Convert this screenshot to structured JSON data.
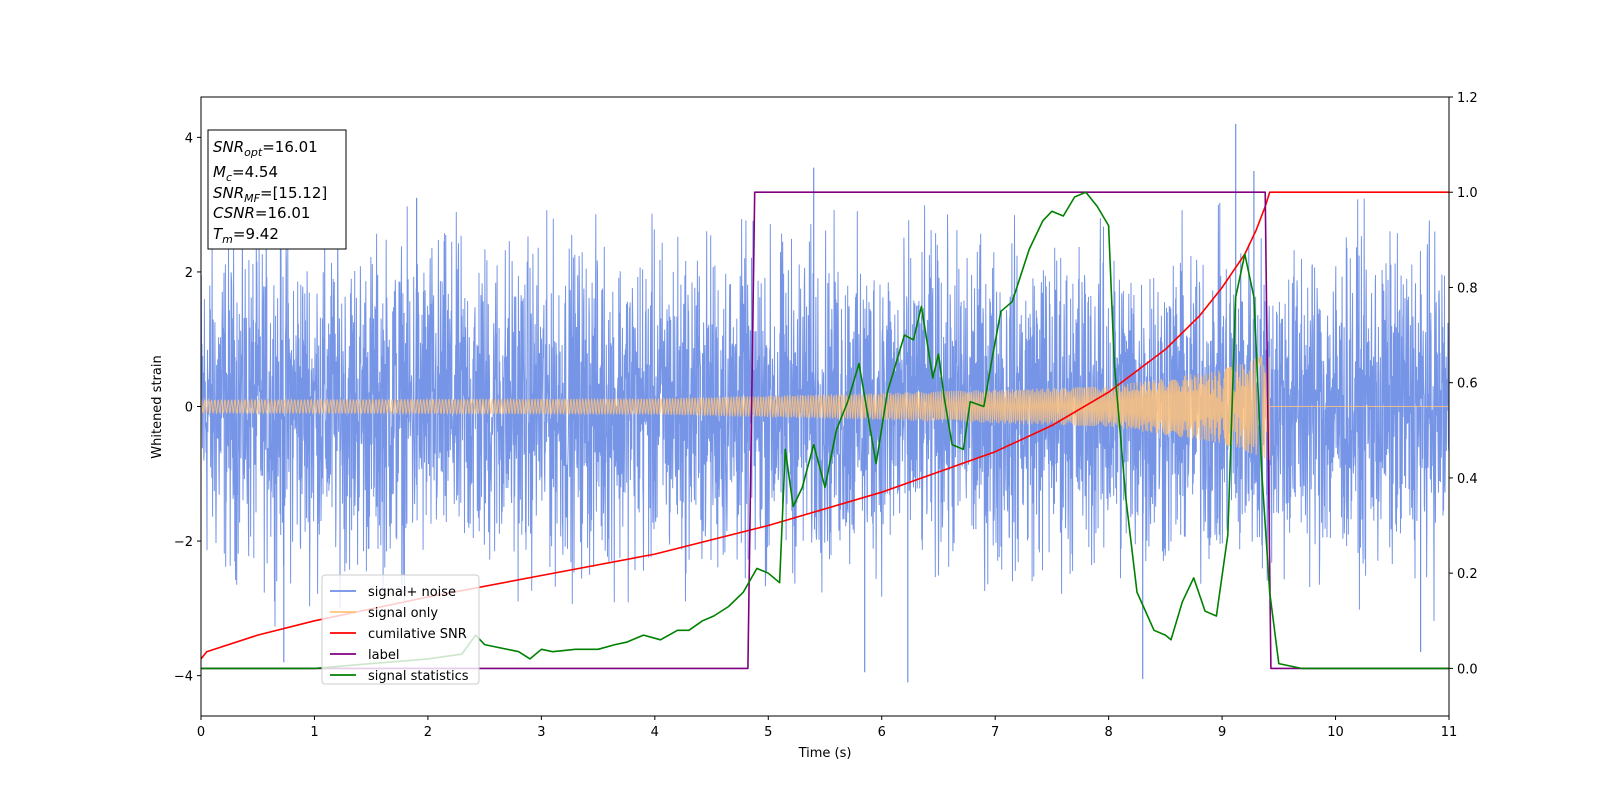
{
  "chart_data": {
    "type": "line",
    "title": "",
    "xlabel": "Time (s)",
    "ylabel": "Whitened strain",
    "y2label": "",
    "xlim": [
      0,
      11
    ],
    "ylim": [
      -4.6,
      4.6
    ],
    "y2lim": [
      -0.1,
      1.2
    ],
    "xticks": [
      "0",
      "1",
      "2",
      "3",
      "4",
      "5",
      "6",
      "7",
      "8",
      "9",
      "10",
      "11"
    ],
    "yticks": [
      "4",
      "2",
      "0",
      "−2",
      "−4"
    ],
    "y2ticks": [
      "1.2",
      "1.0",
      "0.8",
      "0.6",
      "0.4",
      "0.2",
      "0.0"
    ],
    "grid": false,
    "legend_position": "lower-left",
    "legend": [
      {
        "label": "signal+ noise",
        "color": "#6f8fe6"
      },
      {
        "label": "signal only",
        "color": "#ffc27a"
      },
      {
        "label": "cumilative SNR",
        "color": "#ff0000"
      },
      {
        "label": "label",
        "color": "#800080"
      },
      {
        "label": "signal statistics",
        "color": "#008000"
      }
    ],
    "annotation": {
      "lines": [
        {
          "main": "SNR",
          "sub": "opt",
          "value": "=16.01"
        },
        {
          "main": "M",
          "sub": "c",
          "value": "=4.54"
        },
        {
          "main": "SNR",
          "sub": "MF",
          "value": "=[15.12]"
        },
        {
          "main": "CSNR",
          "sub": "",
          "value": "=16.01"
        },
        {
          "main": "T",
          "sub": "m",
          "value": "=9.42"
        }
      ]
    },
    "series": [
      {
        "name": "signal+ noise",
        "axis": "left",
        "style": "noise-band",
        "color": "#6f8fe6",
        "x_range": [
          0,
          11
        ],
        "envelope": [
          2.3,
          2.4
        ],
        "peak_points": [
          {
            "x": 0.73,
            "y": -3.8
          },
          {
            "x": 1.9,
            "y": 3.1
          },
          {
            "x": 5.4,
            "y": 3.55
          },
          {
            "x": 5.85,
            "y": -3.95
          },
          {
            "x": 6.23,
            "y": -4.1
          },
          {
            "x": 8.3,
            "y": -4.05
          },
          {
            "x": 9.12,
            "y": 4.2
          },
          {
            "x": 9.28,
            "y": 3.5
          },
          {
            "x": 10.75,
            "y": -3.65
          }
        ]
      },
      {
        "name": "signal only",
        "axis": "left",
        "style": "chirp",
        "color": "#ffc27a",
        "x_range": [
          0,
          9.42
        ],
        "amplitude_points": [
          {
            "x": 0,
            "y": 0.1
          },
          {
            "x": 4,
            "y": 0.12
          },
          {
            "x": 6,
            "y": 0.2
          },
          {
            "x": 8,
            "y": 0.3
          },
          {
            "x": 9,
            "y": 0.55
          },
          {
            "x": 9.42,
            "y": 0.8
          }
        ]
      },
      {
        "name": "cumilative SNR",
        "axis": "right",
        "color": "#ff0000",
        "x": [
          0,
          0.05,
          0.5,
          1,
          1.5,
          2,
          3,
          4,
          5,
          6,
          7,
          7.5,
          8,
          8.5,
          8.8,
          9,
          9.2,
          9.3,
          9.38,
          9.42,
          11
        ],
        "y": [
          0.02,
          0.035,
          0.07,
          0.1,
          0.125,
          0.15,
          0.195,
          0.24,
          0.3,
          0.37,
          0.455,
          0.51,
          0.58,
          0.67,
          0.74,
          0.8,
          0.87,
          0.92,
          0.97,
          1.0,
          1.0
        ]
      },
      {
        "name": "label",
        "axis": "right",
        "color": "#800080",
        "x": [
          0,
          4.82,
          4.88,
          9.38,
          9.43,
          11
        ],
        "y": [
          0,
          0,
          1,
          1,
          0,
          0
        ]
      },
      {
        "name": "signal statistics",
        "axis": "right",
        "color": "#008000",
        "x": [
          0,
          0.5,
          1,
          1.5,
          2,
          2.3,
          2.42,
          2.5,
          2.8,
          2.9,
          3.0,
          3.1,
          3.3,
          3.5,
          3.65,
          3.75,
          3.9,
          4.05,
          4.2,
          4.3,
          4.42,
          4.52,
          4.65,
          4.78,
          4.9,
          5.0,
          5.1,
          5.15,
          5.22,
          5.3,
          5.4,
          5.5,
          5.6,
          5.7,
          5.8,
          5.95,
          6.05,
          6.2,
          6.28,
          6.35,
          6.45,
          6.5,
          6.55,
          6.62,
          6.72,
          6.78,
          6.9,
          6.98,
          7.05,
          7.15,
          7.3,
          7.42,
          7.5,
          7.6,
          7.7,
          7.8,
          7.9,
          8.0,
          8.05,
          8.15,
          8.25,
          8.4,
          8.5,
          8.55,
          8.65,
          8.75,
          8.85,
          8.95,
          9.05,
          9.12,
          9.2,
          9.28,
          9.35,
          9.42,
          9.5,
          9.7,
          10,
          11
        ],
        "y": [
          0,
          0,
          0,
          0.01,
          0.02,
          0.03,
          0.07,
          0.05,
          0.035,
          0.02,
          0.04,
          0.035,
          0.04,
          0.04,
          0.05,
          0.055,
          0.07,
          0.06,
          0.08,
          0.08,
          0.1,
          0.11,
          0.13,
          0.16,
          0.21,
          0.2,
          0.18,
          0.46,
          0.34,
          0.38,
          0.47,
          0.38,
          0.5,
          0.56,
          0.64,
          0.43,
          0.58,
          0.7,
          0.69,
          0.76,
          0.61,
          0.66,
          0.57,
          0.47,
          0.46,
          0.56,
          0.55,
          0.66,
          0.75,
          0.77,
          0.88,
          0.94,
          0.96,
          0.95,
          0.99,
          1.0,
          0.97,
          0.93,
          0.64,
          0.36,
          0.16,
          0.08,
          0.07,
          0.06,
          0.14,
          0.19,
          0.12,
          0.11,
          0.28,
          0.78,
          0.87,
          0.78,
          0.41,
          0.16,
          0.01,
          0,
          0,
          0
        ]
      }
    ]
  }
}
